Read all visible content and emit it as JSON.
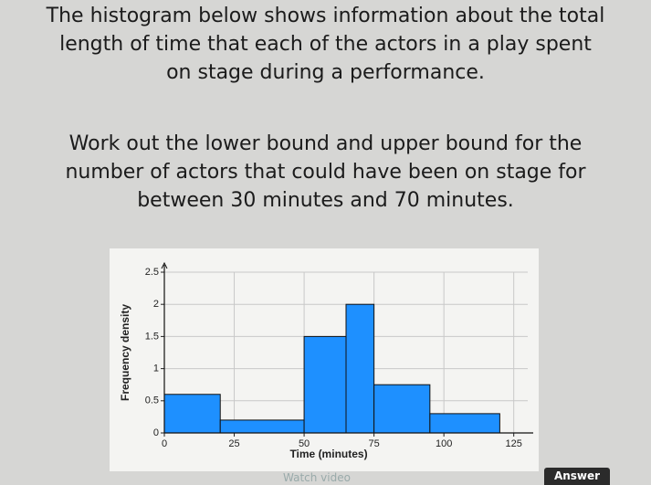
{
  "question": {
    "lines": [
      "The histogram below shows information about the total",
      "length of time that each of the actors in a play spent",
      "on stage during a performance."
    ]
  },
  "task": {
    "lines": [
      "Work out the lower bound and upper bound for the",
      "number of actors that could have been on stage for",
      "between 30 minutes and 70 minutes."
    ]
  },
  "chart_data": {
    "type": "histogram",
    "x_label": "Time (minutes)",
    "y_label": "Frequency density",
    "bins": [
      0,
      20,
      50,
      65,
      75,
      95,
      120
    ],
    "values": [
      0.6,
      0.2,
      1.5,
      2,
      0.75,
      0.3
    ],
    "color": "#1e90ff",
    "xlim": [
      0,
      130
    ],
    "xticks": [
      0,
      25,
      50,
      75,
      100,
      125
    ],
    "ylim": [
      0,
      2.5
    ],
    "yticks": [
      0,
      0.5,
      1,
      1.5,
      2,
      2.5
    ],
    "grid": true
  },
  "buttons": {
    "watch": "Watch video",
    "answer": "Answer"
  }
}
